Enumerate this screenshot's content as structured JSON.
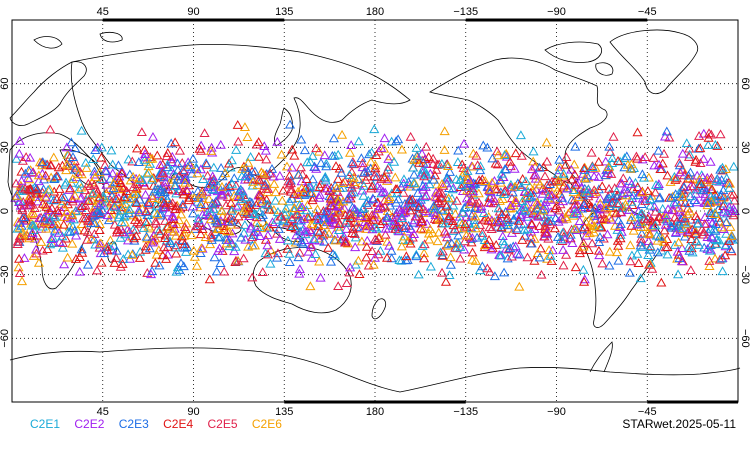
{
  "map": {
    "projection": "cylindrical-equidistant",
    "center_longitude": 180,
    "lon_range": [
      0,
      360
    ],
    "lat_range": [
      -90,
      90
    ],
    "grid": "dotted",
    "background": "#ffffff",
    "coastline_color": "#000000",
    "lon_ticks": [
      {
        "lon": 45,
        "label": "45"
      },
      {
        "lon": 90,
        "label": "90"
      },
      {
        "lon": 135,
        "label": "135"
      },
      {
        "lon": 180,
        "label": "180"
      },
      {
        "lon": 225,
        "label": "−135"
      },
      {
        "lon": 270,
        "label": "−90"
      },
      {
        "lon": 315,
        "label": "−45"
      }
    ],
    "lat_ticks": [
      {
        "lat": 60,
        "label": "60"
      },
      {
        "lat": 30,
        "label": "30"
      },
      {
        "lat": 0,
        "label": "0"
      },
      {
        "lat": -30,
        "label": "−30"
      },
      {
        "lat": -60,
        "label": "−60"
      }
    ]
  },
  "chart_data": {
    "type": "scatter",
    "marker": "open-triangle",
    "observation_lat_band": [
      -40,
      45
    ],
    "observation_lon_band": [
      0,
      360
    ],
    "series": [
      {
        "name": "C2E1",
        "color": "#1aaad8"
      },
      {
        "name": "C2E2",
        "color": "#a020f0"
      },
      {
        "name": "C2E3",
        "color": "#1e6ee6"
      },
      {
        "name": "C2E4",
        "color": "#e01414"
      },
      {
        "name": "C2E5",
        "color": "#e0204a"
      },
      {
        "name": "C2E6",
        "color": "#f5a000"
      }
    ]
  },
  "legend_items": [
    {
      "label": "C2E1",
      "color": "#1aaad8"
    },
    {
      "label": "C2E2",
      "color": "#a020f0"
    },
    {
      "label": "C2E3",
      "color": "#1e6ee6"
    },
    {
      "label": "C2E4",
      "color": "#e01414"
    },
    {
      "label": "C2E5",
      "color": "#e0204a"
    },
    {
      "label": "C2E6",
      "color": "#f5a000"
    }
  ],
  "footer": {
    "stamp": "STARwet.2025-05-11"
  }
}
